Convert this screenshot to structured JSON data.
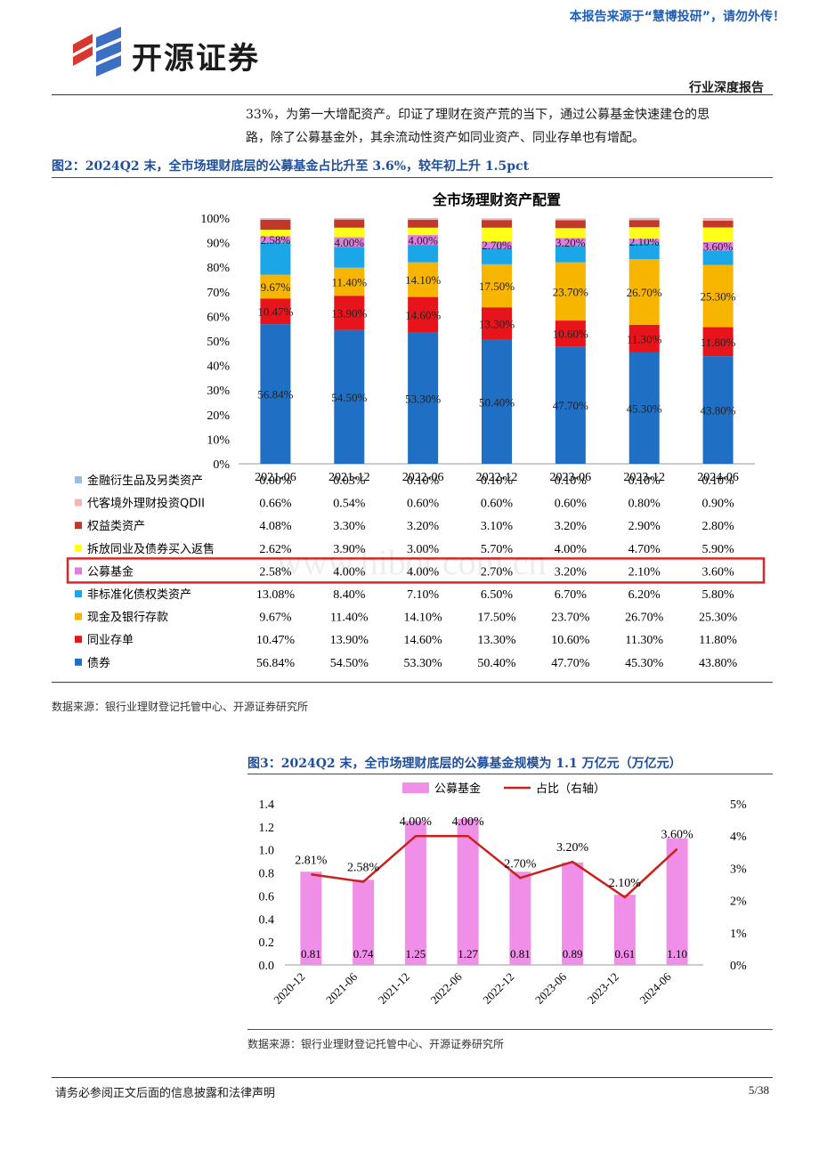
{
  "header": {
    "notice": "本报告来源于“慧博投研”，请勿外传！",
    "brand": "开源证券",
    "report_type": "行业深度报告"
  },
  "body_text": {
    "line1": "33%，为第一大增配资产。印证了理财在资产荒的当下，通过公募基金快速建仓的思",
    "line2": "路，除了公募基金外，其余流动性资产如同业资产、同业存单也有增配。"
  },
  "figure2": {
    "caption": "图2：2024Q2 末，全市场理财底层的公募基金占比升至 3.6%，较年初上升 1.5pct",
    "source": "数据来源：银行业理财登记托管中心、开源证券研究所",
    "watermark": "www.hibor.com.cn"
  },
  "figure3": {
    "caption": "图3：2024Q2 末，全市场理财底层的公募基金规模为 1.1 万亿元（万亿元）",
    "source": "数据来源：银行业理财登记托管中心、开源证券研究所"
  },
  "footer": {
    "disclaimer": "请务必参阅正文后面的信息披露和法律声明",
    "page": "5/38"
  },
  "colors": {
    "bond": "#1f6fc5",
    "ncd": "#e8141c",
    "cash": "#f7b500",
    "nonstd": "#1ba6e8",
    "fund": "#e07de0",
    "repo": "#ffff1a",
    "equity": "#c0392b",
    "qdii": "#f2b6b6",
    "deriv": "#9dbbe6",
    "fundbar": "#f08fe8",
    "line": "#c9211e",
    "highlight": "#d9262a"
  },
  "chart_data": [
    {
      "type": "bar",
      "stacked": true,
      "title": "全市场理财资产配置",
      "categories": [
        "2021-06",
        "2021-12",
        "2022-06",
        "2022-12",
        "2023-06",
        "2023-12",
        "2024-06"
      ],
      "ylim": [
        0,
        100
      ],
      "yticks": [
        "0%",
        "10%",
        "20%",
        "30%",
        "40%",
        "50%",
        "60%",
        "70%",
        "80%",
        "90%",
        "100%"
      ],
      "series": [
        {
          "name": "债券",
          "key": "bond",
          "values": [
            56.84,
            54.5,
            53.3,
            50.4,
            47.7,
            45.3,
            43.8
          ],
          "labels": [
            "56.84%",
            "54.50%",
            "53.30%",
            "50.40%",
            "47.70%",
            "45.30%",
            "43.80%"
          ]
        },
        {
          "name": "同业存单",
          "key": "ncd",
          "values": [
            10.47,
            13.9,
            14.6,
            13.3,
            10.6,
            11.3,
            11.8
          ],
          "labels": [
            "10.47%",
            "13.90%",
            "14.60%",
            "13.30%",
            "10.60%",
            "11.30%",
            "11.80%"
          ]
        },
        {
          "name": "现金及银行存款",
          "key": "cash",
          "values": [
            9.67,
            11.4,
            14.1,
            17.5,
            23.7,
            26.7,
            25.3
          ],
          "labels": [
            "9.67%",
            "11.40%",
            "14.10%",
            "17.50%",
            "23.70%",
            "26.70%",
            "25.30%"
          ]
        },
        {
          "name": "非标准化债权类资产",
          "key": "nonstd",
          "values": [
            13.08,
            8.4,
            7.1,
            6.5,
            6.7,
            6.2,
            5.8
          ],
          "labels": [
            "13.08%",
            "8.40%",
            "7.10%",
            "6.50%",
            "6.70%",
            "6.20%",
            "5.80%"
          ]
        },
        {
          "name": "公募基金",
          "key": "fund",
          "values": [
            2.58,
            4.0,
            4.0,
            2.7,
            3.2,
            2.1,
            3.6
          ],
          "labels": [
            "2.58%",
            "4.00%",
            "4.00%",
            "2.70%",
            "3.20%",
            "2.10%",
            "3.60%"
          ]
        },
        {
          "name": "拆放同业及债券买入返售",
          "key": "repo",
          "values": [
            2.62,
            3.9,
            3.0,
            5.7,
            4.0,
            4.7,
            5.9
          ],
          "labels": [
            "2.62%",
            "3.90%",
            "3.00%",
            "5.70%",
            "4.00%",
            "4.70%",
            "5.90%"
          ]
        },
        {
          "name": "权益类资产",
          "key": "equity",
          "values": [
            4.08,
            3.3,
            3.2,
            3.1,
            3.2,
            2.9,
            2.8
          ],
          "labels": [
            "4.08%",
            "3.30%",
            "3.20%",
            "3.10%",
            "3.20%",
            "2.90%",
            "2.80%"
          ]
        },
        {
          "name": "代客境外理财投资QDII",
          "key": "qdii",
          "values": [
            0.66,
            0.54,
            0.6,
            0.6,
            0.6,
            0.8,
            0.9
          ],
          "labels": [
            "0.66%",
            "0.54%",
            "0.60%",
            "0.60%",
            "0.60%",
            "0.80%",
            "0.90%"
          ]
        },
        {
          "name": "金融衍生品及另类资产",
          "key": "deriv",
          "values": [
            0.0,
            0.03,
            0.1,
            0.1,
            0.1,
            0.1,
            0.1
          ],
          "labels": [
            "0.00%",
            "0.03%",
            "0.10%",
            "0.10%",
            "0.10%",
            "0.10%",
            "0.10%"
          ]
        }
      ],
      "table_order": [
        "deriv",
        "qdii",
        "equity",
        "repo",
        "fund",
        "nonstd",
        "cash",
        "ncd",
        "bond"
      ],
      "labelled_series": [
        "bond",
        "ncd",
        "cash",
        "fund"
      ],
      "highlighted_row": "fund"
    },
    {
      "type": "bar+line",
      "categories": [
        "2020-12",
        "2021-06",
        "2021-12",
        "2022-06",
        "2022-12",
        "2023-06",
        "2023-12",
        "2024-06"
      ],
      "series": [
        {
          "name": "公募基金",
          "axis": "left",
          "values": [
            0.81,
            0.74,
            1.25,
            1.27,
            0.81,
            0.89,
            0.61,
            1.1
          ],
          "labels": [
            "0.81",
            "0.74",
            "1.25",
            "1.27",
            "0.81",
            "0.89",
            "0.61",
            "1.10"
          ]
        },
        {
          "name": "占比（右轴）",
          "axis": "right",
          "values": [
            2.81,
            2.58,
            4.0,
            4.0,
            2.7,
            3.2,
            2.1,
            3.6
          ],
          "labels": [
            "2.81%",
            "2.58%",
            "4.00%",
            "4.00%",
            "2.70%",
            "3.20%",
            "2.10%",
            "3.60%"
          ]
        }
      ],
      "ylim": [
        0,
        1.4
      ],
      "yticks": [
        "0.0",
        "0.2",
        "0.4",
        "0.6",
        "0.8",
        "1.0",
        "1.2",
        "1.4"
      ],
      "y2lim": [
        0,
        5
      ],
      "y2ticks": [
        "0%",
        "1%",
        "2%",
        "3%",
        "4%",
        "5%"
      ],
      "legend": "top"
    }
  ]
}
